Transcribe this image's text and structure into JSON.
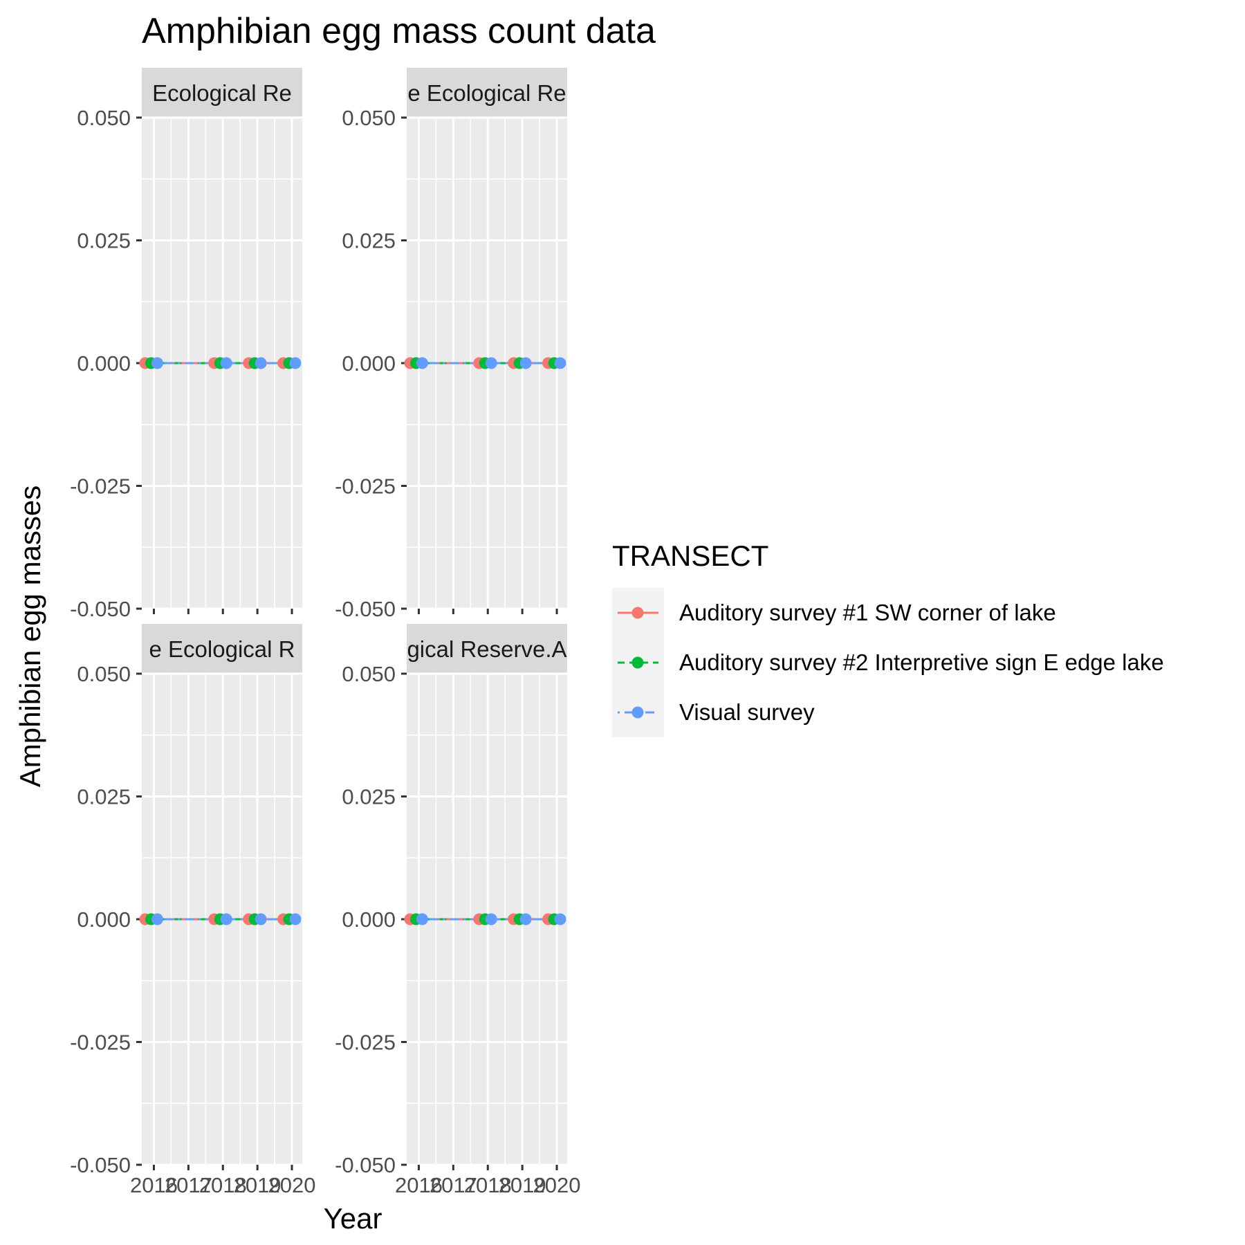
{
  "chart_data": {
    "type": "line",
    "title": "Amphibian egg mass count data",
    "xlabel": "Year",
    "ylabel": "Amphibian egg masses",
    "ylim": [
      -0.05,
      0.05
    ],
    "y_ticks": [
      "-0.050",
      "-0.025",
      "0.000",
      "0.025",
      "0.050"
    ],
    "x_ticks": [
      "2016",
      "2017",
      "2018",
      "2019",
      "2020"
    ],
    "grid": true,
    "legend_position": "right",
    "legend_title": "TRANSECT",
    "series_colors": [
      "#F8766D",
      "#00BA38",
      "#619CFF"
    ],
    "series": [
      {
        "name": "Auditory survey #1 SW corner of lake",
        "style": "solid",
        "x": [
          2015.75,
          2017.75,
          2018.75,
          2019.75
        ],
        "y": [
          0,
          0,
          0,
          0
        ]
      },
      {
        "name": "Auditory survey #2 Interpretive sign E edge lake",
        "style": "dashed",
        "x": [
          2015.92,
          2017.92,
          2018.92,
          2019.92
        ],
        "y": [
          0,
          0,
          0,
          0
        ]
      },
      {
        "name": "Visual survey",
        "style": "dotdash",
        "x": [
          2016.1,
          2018.1,
          2019.1,
          2020.1
        ],
        "y": [
          0,
          0,
          0,
          0
        ]
      }
    ],
    "facets": [
      {
        "strip": "Ecological Re"
      },
      {
        "strip": "e Ecological Re"
      },
      {
        "strip": "e Ecological R"
      },
      {
        "strip": "gical Reserve.A"
      }
    ]
  }
}
